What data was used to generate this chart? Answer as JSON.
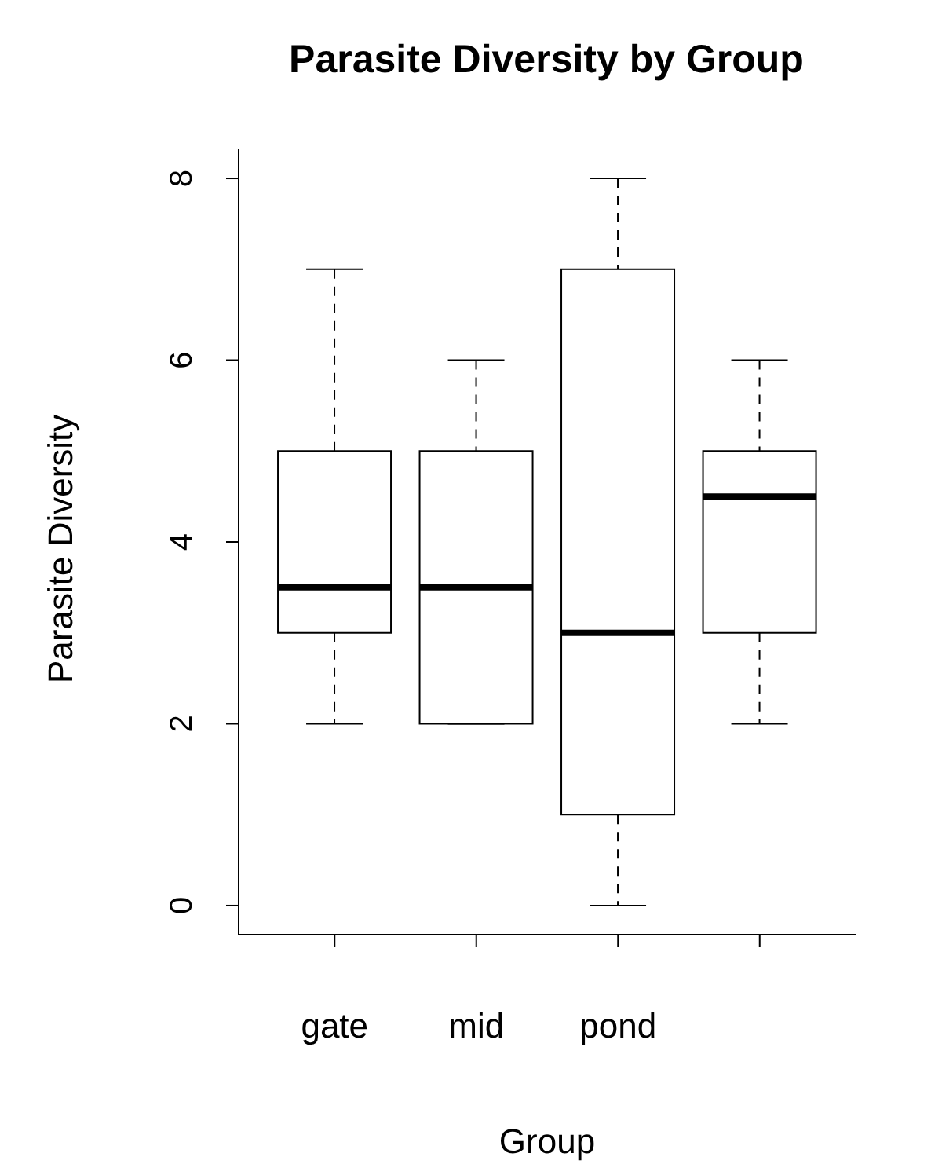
{
  "chart_data": {
    "type": "box",
    "title": "Parasite Diversity by Group",
    "xlabel": "Group",
    "ylabel": "Parasite Diversity",
    "categories": [
      "gate",
      "mid",
      "pond",
      null
    ],
    "boxes": [
      {
        "low": 2,
        "q1": 3,
        "median": 3.5,
        "q3": 5,
        "high": 7
      },
      {
        "low": 2,
        "q1": 2,
        "median": 3.5,
        "q3": 5,
        "high": 6
      },
      {
        "low": 0,
        "q1": 1,
        "median": 3,
        "q3": 7,
        "high": 8
      },
      {
        "low": 2,
        "q1": 3,
        "median": 4.5,
        "q3": 5,
        "high": 6
      }
    ],
    "ylim": [
      -0.32,
      8.32
    ],
    "yticks": [
      0,
      2,
      4,
      6,
      8
    ],
    "grid": false,
    "legend": false
  }
}
